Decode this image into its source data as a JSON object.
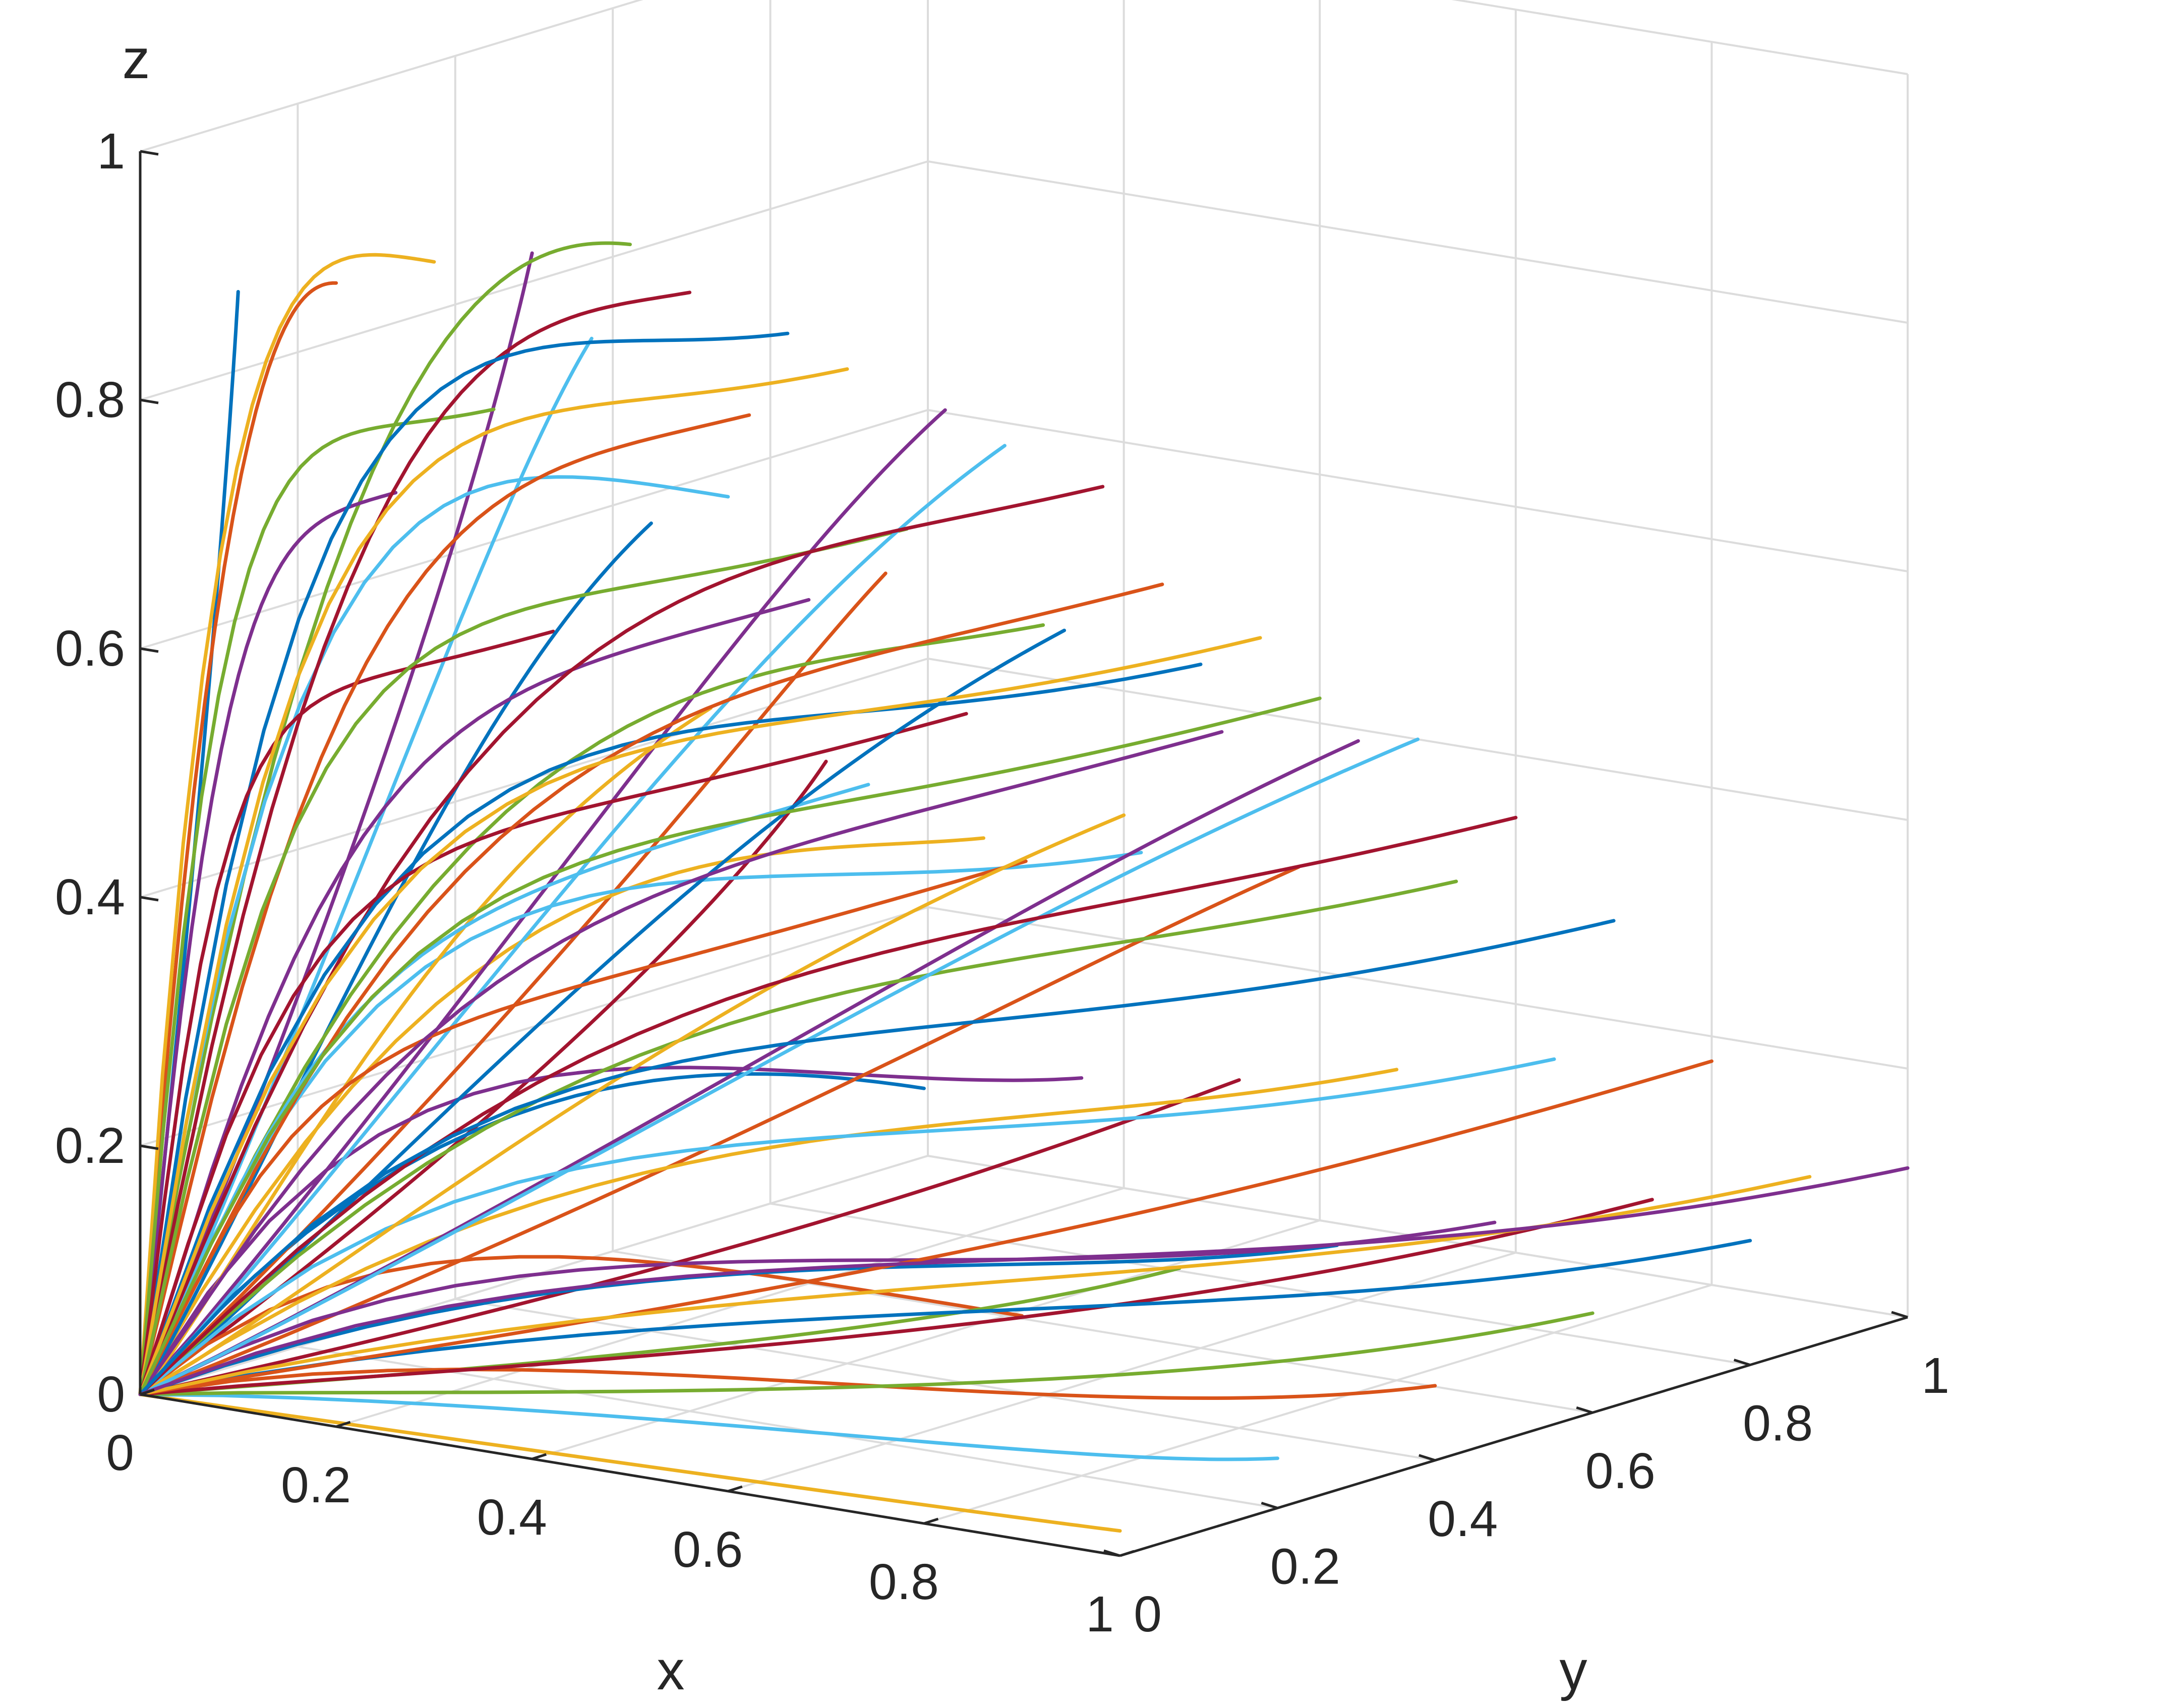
{
  "chart_data": {
    "type": "line",
    "projection": "3d",
    "title": "",
    "xlabel": "x",
    "ylabel": "y",
    "zlabel": "z",
    "xlim": [
      0,
      1
    ],
    "ylim": [
      0,
      1
    ],
    "zlim": [
      0,
      1
    ],
    "x_ticks": [
      "0",
      "0.2",
      "0.4",
      "0.6",
      "0.8",
      "1"
    ],
    "y_ticks": [
      "0",
      "0.2",
      "0.4",
      "0.6",
      "0.8",
      "1"
    ],
    "z_ticks": [
      "0",
      "0.2",
      "0.4",
      "0.6",
      "0.8",
      "1"
    ],
    "grid": true,
    "legend": "none",
    "series_colors": [
      "#0072bd",
      "#d95319",
      "#edb120",
      "#7e2f8e",
      "#77ac30",
      "#4dbeee",
      "#a2142f"
    ],
    "series_description": "trajectories starting near the origin, one per initial (x, y) grid point, each ending at the given end point",
    "trajectory_end_points": [
      {
        "x": 0.1,
        "y": 0,
        "z": 0.9
      },
      {
        "x": 0.2,
        "y": 0,
        "z": 0.92
      },
      {
        "x": 0.3,
        "y": 0,
        "z": 0.95
      },
      {
        "x": 0.4,
        "y": 0,
        "z": 0.97
      },
      {
        "x": 0.5,
        "y": 0,
        "z": 0.99
      },
      {
        "x": 0.6,
        "y": 0,
        "z": 0.8
      },
      {
        "x": 0.7,
        "y": 0,
        "z": 0.6
      },
      {
        "x": 0.8,
        "y": 0,
        "z": 0.35
      },
      {
        "x": 0.9,
        "y": 0,
        "z": 0.18
      },
      {
        "x": 1,
        "y": 0,
        "z": 0.02
      },
      {
        "x": 0.1,
        "y": 0.2,
        "z": 0.7
      },
      {
        "x": 0.2,
        "y": 0.2,
        "z": 0.78
      },
      {
        "x": 0.3,
        "y": 0.2,
        "z": 0.85
      },
      {
        "x": 0.4,
        "y": 0.2,
        "z": 0.9
      },
      {
        "x": 0.5,
        "y": 0.2,
        "z": 0.88
      },
      {
        "x": 0.6,
        "y": 0.2,
        "z": 0.7
      },
      {
        "x": 0.7,
        "y": 0.2,
        "z": 0.5
      },
      {
        "x": 0.8,
        "y": 0.2,
        "z": 0.32
      },
      {
        "x": 0.9,
        "y": 0.2,
        "z": 0.18
      },
      {
        "x": 1,
        "y": 0.2,
        "z": 0.04
      },
      {
        "x": 0.1,
        "y": 0.4,
        "z": 0.55
      },
      {
        "x": 0.2,
        "y": 0.4,
        "z": 0.65
      },
      {
        "x": 0.3,
        "y": 0.4,
        "z": 0.75
      },
      {
        "x": 0.4,
        "y": 0.4,
        "z": 0.8
      },
      {
        "x": 0.5,
        "y": 0.4,
        "z": 0.78
      },
      {
        "x": 0.6,
        "y": 0.4,
        "z": 0.62
      },
      {
        "x": 0.7,
        "y": 0.4,
        "z": 0.45
      },
      {
        "x": 0.8,
        "y": 0.4,
        "z": 0.28
      },
      {
        "x": 0.9,
        "y": 0.4,
        "z": 0.16
      },
      {
        "x": 1,
        "y": 0.4,
        "z": 0.06
      },
      {
        "x": 0.1,
        "y": 0.6,
        "z": 0.45
      },
      {
        "x": 0.2,
        "y": 0.6,
        "z": 0.55
      },
      {
        "x": 0.3,
        "y": 0.6,
        "z": 0.62
      },
      {
        "x": 0.4,
        "y": 0.6,
        "z": 0.7
      },
      {
        "x": 0.5,
        "y": 0.6,
        "z": 0.68
      },
      {
        "x": 0.6,
        "y": 0.6,
        "z": 0.55
      },
      {
        "x": 0.7,
        "y": 0.6,
        "z": 0.4
      },
      {
        "x": 0.8,
        "y": 0.6,
        "z": 0.25
      },
      {
        "x": 0.9,
        "y": 0.6,
        "z": 0.14
      },
      {
        "x": 1,
        "y": 0.6,
        "z": 0.08
      },
      {
        "x": 0.1,
        "y": 0.8,
        "z": 0.35
      },
      {
        "x": 0.2,
        "y": 0.8,
        "z": 0.42
      },
      {
        "x": 0.3,
        "y": 0.8,
        "z": 0.5
      },
      {
        "x": 0.4,
        "y": 0.8,
        "z": 0.55
      },
      {
        "x": 0.5,
        "y": 0.8,
        "z": 0.52
      },
      {
        "x": 0.6,
        "y": 0.8,
        "z": 0.45
      },
      {
        "x": 0.7,
        "y": 0.8,
        "z": 0.35
      },
      {
        "x": 0.8,
        "y": 0.8,
        "z": 0.22
      },
      {
        "x": 0.9,
        "y": 0.8,
        "z": 0.12
      },
      {
        "x": 1,
        "y": 0.8,
        "z": 0.1
      },
      {
        "x": 0.1,
        "y": 1,
        "z": 0.25
      },
      {
        "x": 0.2,
        "y": 1,
        "z": 0.3
      },
      {
        "x": 0.3,
        "y": 1,
        "z": 0.38
      },
      {
        "x": 0.4,
        "y": 1,
        "z": 0.42
      },
      {
        "x": 0.5,
        "y": 1,
        "z": 0.4
      },
      {
        "x": 0.6,
        "y": 1,
        "z": 0.35
      },
      {
        "x": 0.7,
        "y": 1,
        "z": 0.28
      },
      {
        "x": 0.8,
        "y": 1,
        "z": 0.18
      },
      {
        "x": 0.9,
        "y": 1,
        "z": 0.1
      },
      {
        "x": 1,
        "y": 1,
        "z": 0.12
      }
    ]
  }
}
